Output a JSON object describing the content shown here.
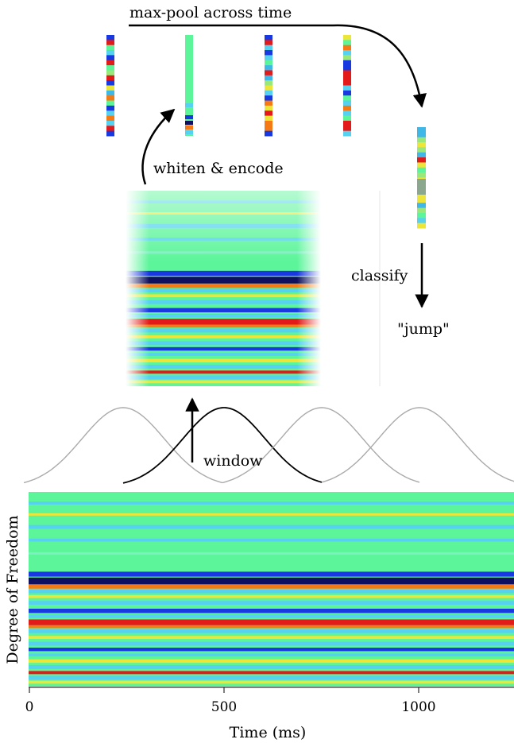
{
  "labels": {
    "maxpool": "max-pool across time",
    "whiten": "whiten & encode",
    "classify": "classify",
    "result": "\"jump\"",
    "window": "window"
  },
  "axes": {
    "xlabel": "Time (ms)",
    "ylabel": "Degree of Freedom",
    "xticks": [
      "0",
      "500",
      "1000"
    ]
  },
  "colors": {
    "bg_green": "#5cf59a",
    "cyan": "#56d2f0",
    "blue": "#1838e0",
    "navy": "#101060",
    "red": "#e21a1a",
    "orange": "#f57a15",
    "yellow": "#ece53a",
    "window_active": "#000000",
    "window_inactive": "#aaaaaa"
  }
}
